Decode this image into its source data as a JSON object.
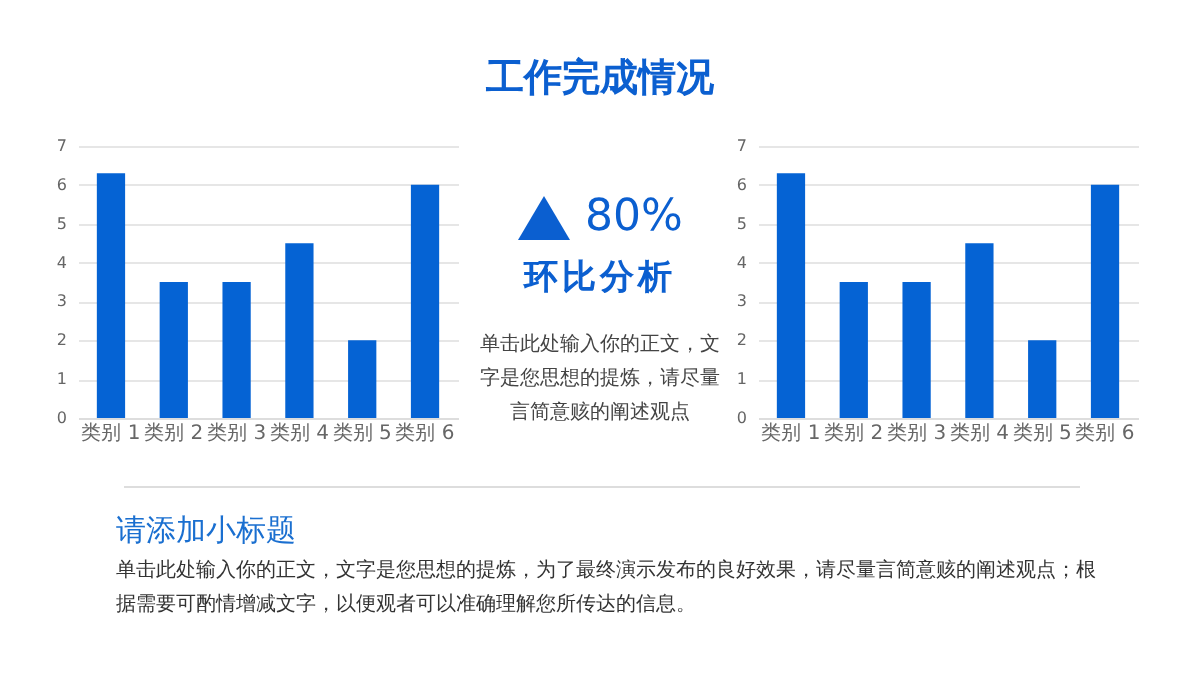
{
  "chart_data": [
    {
      "type": "other",
      "title": "工作完成情况"
    },
    {
      "type": "bar",
      "categories": [
        "类别 1",
        "类别 2",
        "类别 3",
        "类别 4",
        "类别 5",
        "类别 6"
      ],
      "values": [
        6.3,
        3.5,
        3.5,
        4.5,
        2,
        6
      ],
      "color": "#0563d4",
      "ylim": [
        0,
        7
      ],
      "yticks": [
        0,
        1,
        2,
        3,
        4,
        5,
        6,
        7
      ],
      "grid": "y"
    },
    {
      "type": "other",
      "title": "环比分析",
      "annotations": [
        "80%",
        "单击此处输入你的正文，文字是您思想的提炼，请尽量言简意赅的阐述观点"
      ]
    },
    {
      "type": "bar",
      "categories": [
        "类别 1",
        "类别 2",
        "类别 3",
        "类别 4",
        "类别 5",
        "类别 6"
      ],
      "values": [
        6.3,
        3.5,
        3.5,
        4.5,
        2,
        6
      ],
      "color": "#0563d4",
      "ylim": [
        0,
        7
      ],
      "yticks": [
        0,
        1,
        2,
        3,
        4,
        5,
        6,
        7
      ],
      "grid": "y"
    },
    {
      "type": "other",
      "title": "请添加小标题",
      "annotations": [
        "单击此处输入你的正文，文字是您思想的提炼，为了最终演示发布的良好效果，请尽量言简意赅的阐述观点；根据需要可酌情增减文字，以便观者可以准确理解您所传达的信息。"
      ]
    }
  ]
}
